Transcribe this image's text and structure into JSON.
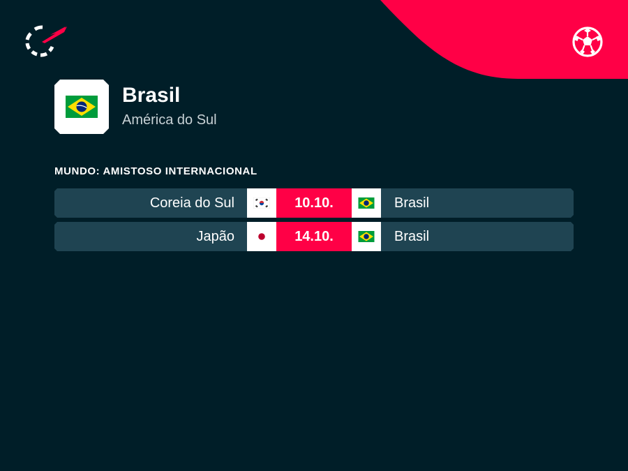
{
  "colors": {
    "background": "#001e28",
    "accent": "#ff0046",
    "row_background": "#1f4452"
  },
  "header": {
    "logo_icon": "flashscore-logo-icon",
    "sport_icon": "soccer-ball-icon"
  },
  "team": {
    "name": "Brasil",
    "region": "América do Sul",
    "flag_icon": "brazil-flag-icon"
  },
  "competition": "MUNDO: AMISTOSO INTERNACIONAL",
  "matches": [
    {
      "home": "Coreia do Sul",
      "home_flag": "south-korea-flag-icon",
      "date": "10.10.",
      "away": "Brasil",
      "away_flag": "brazil-flag-icon"
    },
    {
      "home": "Japão",
      "home_flag": "japan-flag-icon",
      "date": "14.10.",
      "away": "Brasil",
      "away_flag": "brazil-flag-icon"
    }
  ]
}
